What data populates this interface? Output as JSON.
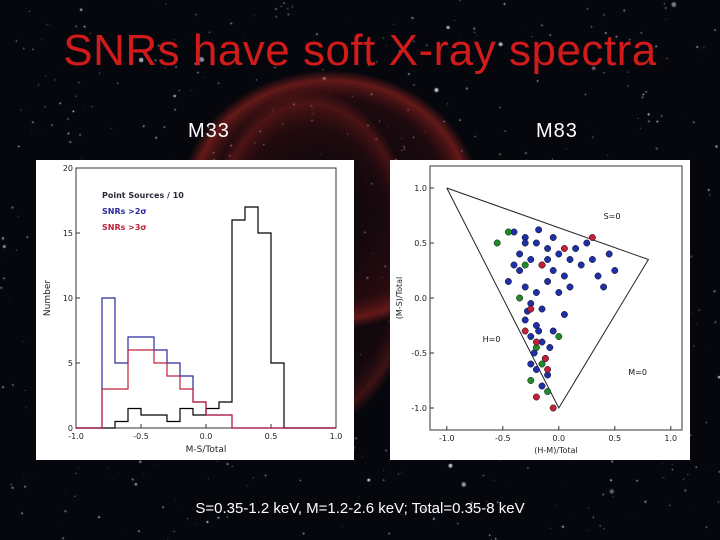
{
  "slide": {
    "title": "SNRs have soft X-ray spectra",
    "left_label": "M33",
    "right_label": "M83",
    "footer": "S=0.35-1.2 keV, M=1.2-2.6 keV; Total=0.35-8 keV"
  },
  "colors": {
    "title": "#d11a1a",
    "black_series": "#000000",
    "blue_series": "#2a2aa0",
    "red_series": "#c0203a",
    "green_points": "#1f8a2a"
  },
  "chart_data": [
    {
      "type": "step-histogram",
      "xlabel": "M-S/Total",
      "ylabel": "Number",
      "xlim": [
        -1.0,
        1.0
      ],
      "ylim": [
        0,
        20
      ],
      "xticks": [
        "-1.0",
        "-0.5",
        "0.0",
        "0.5",
        "1.0"
      ],
      "yticks": [
        "0",
        "5",
        "10",
        "15",
        "20"
      ],
      "bin_edges": [
        -1.0,
        -0.9,
        -0.8,
        -0.7,
        -0.6,
        -0.5,
        -0.4,
        -0.3,
        -0.2,
        -0.1,
        0.0,
        0.1,
        0.2,
        0.3,
        0.4,
        0.5,
        0.6,
        0.7,
        0.8,
        0.9,
        1.0
      ],
      "legend": [
        {
          "text": "Point Sources / 10",
          "color": "#2a2a3a"
        },
        {
          "text": "SNRs >2σ",
          "color": "#2a2aa0"
        },
        {
          "text": "SNRs >3σ",
          "color": "#c0203a"
        }
      ],
      "series": [
        {
          "name": "Point Sources / 10",
          "color": "#000000",
          "values": [
            0,
            0,
            0,
            0.5,
            1.5,
            1,
            1,
            0.5,
            1.5,
            1,
            1.5,
            2,
            16,
            17,
            15,
            5,
            0,
            0,
            0,
            0
          ]
        },
        {
          "name": "SNRs >2σ",
          "color": "#2a2aa0",
          "values": [
            0,
            0,
            10,
            5,
            7,
            7,
            6,
            5,
            4,
            2,
            1,
            1,
            0,
            0,
            0,
            0,
            0,
            0,
            0,
            0
          ]
        },
        {
          "name": "SNRs >3σ",
          "color": "#c0203a",
          "values": [
            0,
            0,
            3,
            3,
            6,
            6,
            5,
            4,
            3,
            2,
            1,
            1,
            0,
            0,
            0,
            0,
            0,
            0,
            0,
            0
          ]
        }
      ]
    },
    {
      "type": "scatter",
      "xlabel": "(H-M)/Total",
      "ylabel": "(M-S)/Total",
      "xlim": [
        -1.15,
        1.1
      ],
      "ylim": [
        -1.2,
        1.2
      ],
      "xticks": [
        "-1.0",
        "-0.5",
        "0.0",
        "0.5",
        "1.0"
      ],
      "yticks": [
        "-1.0",
        "-0.5",
        "0.0",
        "0.5",
        "1.0"
      ],
      "annotations": [
        {
          "text": "S=0",
          "x": 0.4,
          "y": 0.72
        },
        {
          "text": "H=0",
          "x": -0.68,
          "y": -0.4
        },
        {
          "text": "M=0",
          "x": 0.62,
          "y": -0.7
        }
      ],
      "boundary": [
        [
          -1.0,
          1.0
        ],
        [
          0.8,
          0.35
        ],
        [
          0.0,
          -1.0
        ],
        [
          -1.0,
          1.0
        ]
      ],
      "series": [
        {
          "name": "",
          "color": "#1f2fa8",
          "points": [
            [
              -0.4,
              0.6
            ],
            [
              -0.3,
              0.55
            ],
            [
              -0.2,
              0.5
            ],
            [
              -0.1,
              0.45
            ],
            [
              -0.35,
              0.4
            ],
            [
              -0.25,
              0.35
            ],
            [
              -0.15,
              0.3
            ],
            [
              0.0,
              0.4
            ],
            [
              0.1,
              0.35
            ],
            [
              0.2,
              0.3
            ],
            [
              0.05,
              0.2
            ],
            [
              -0.05,
              0.25
            ],
            [
              0.15,
              0.45
            ],
            [
              0.3,
              0.35
            ],
            [
              0.35,
              0.2
            ],
            [
              0.5,
              0.25
            ],
            [
              0.4,
              0.1
            ],
            [
              -0.45,
              0.15
            ],
            [
              -0.3,
              0.1
            ],
            [
              -0.2,
              0.05
            ],
            [
              -0.1,
              0.15
            ],
            [
              0.0,
              0.05
            ],
            [
              -0.25,
              -0.05
            ],
            [
              -0.15,
              -0.1
            ],
            [
              -0.3,
              -0.2
            ],
            [
              -0.2,
              -0.25
            ],
            [
              -0.25,
              -0.35
            ],
            [
              -0.15,
              -0.4
            ],
            [
              -0.22,
              -0.5
            ],
            [
              -0.12,
              -0.55
            ],
            [
              -0.2,
              -0.65
            ],
            [
              -0.1,
              -0.7
            ],
            [
              -0.15,
              -0.8
            ],
            [
              -0.25,
              -0.6
            ],
            [
              -0.05,
              -0.3
            ],
            [
              0.05,
              -0.15
            ],
            [
              -0.35,
              0.25
            ],
            [
              -0.05,
              0.55
            ],
            [
              0.25,
              0.5
            ],
            [
              0.45,
              0.4
            ],
            [
              -0.4,
              0.3
            ],
            [
              -0.1,
              0.35
            ],
            [
              0.1,
              0.1
            ],
            [
              -0.28,
              -0.12
            ],
            [
              -0.18,
              -0.3
            ],
            [
              -0.08,
              -0.45
            ],
            [
              -0.3,
              0.5
            ],
            [
              -0.18,
              0.62
            ]
          ]
        },
        {
          "name": "",
          "color": "#1f8a2a",
          "points": [
            [
              -0.55,
              0.5
            ],
            [
              -0.45,
              0.6
            ],
            [
              -0.3,
              0.3
            ],
            [
              -0.2,
              -0.45
            ],
            [
              -0.15,
              -0.6
            ],
            [
              -0.25,
              -0.75
            ],
            [
              -0.1,
              -0.85
            ],
            [
              0.0,
              -0.35
            ],
            [
              -0.35,
              0.0
            ]
          ]
        },
        {
          "name": "",
          "color": "#c0203a",
          "points": [
            [
              -0.15,
              0.3
            ],
            [
              0.05,
              0.45
            ],
            [
              -0.25,
              -0.1
            ],
            [
              -0.2,
              -0.4
            ],
            [
              -0.1,
              -0.65
            ],
            [
              -0.2,
              -0.9
            ],
            [
              -0.05,
              -1.0
            ],
            [
              0.3,
              0.55
            ],
            [
              -0.3,
              -0.3
            ],
            [
              -0.12,
              -0.55
            ]
          ]
        }
      ]
    }
  ]
}
